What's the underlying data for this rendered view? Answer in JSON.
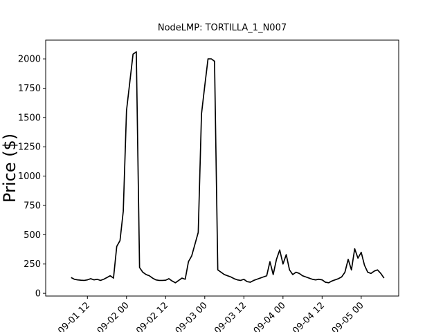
{
  "chart_data": {
    "type": "line",
    "title": "NodeLMP: TORTILLA_1_N007",
    "y_label": "Price ($)",
    "x": [
      "09-01 07:00",
      "09-01 08:00",
      "09-01 09:00",
      "09-01 10:00",
      "09-01 11:00",
      "09-01 12:00",
      "09-01 13:00",
      "09-01 14:00",
      "09-01 15:00",
      "09-01 16:00",
      "09-01 17:00",
      "09-01 18:00",
      "09-01 19:00",
      "09-01 20:00",
      "09-01 21:00",
      "09-01 22:00",
      "09-01 23:00",
      "09-02 00:00",
      "09-02 01:00",
      "09-02 02:00",
      "09-02 03:00",
      "09-02 04:00",
      "09-02 05:00",
      "09-02 06:00",
      "09-02 07:00",
      "09-02 08:00",
      "09-02 09:00",
      "09-02 10:00",
      "09-02 11:00",
      "09-02 12:00",
      "09-02 13:00",
      "09-02 14:00",
      "09-02 15:00",
      "09-02 16:00",
      "09-02 17:00",
      "09-02 18:00",
      "09-02 19:00",
      "09-02 20:00",
      "09-02 21:00",
      "09-02 22:00",
      "09-02 23:00",
      "09-03 00:00",
      "09-03 01:00",
      "09-03 02:00",
      "09-03 03:00",
      "09-03 04:00",
      "09-03 05:00",
      "09-03 06:00",
      "09-03 07:00",
      "09-03 08:00",
      "09-03 09:00",
      "09-03 10:00",
      "09-03 11:00",
      "09-03 12:00",
      "09-03 13:00",
      "09-03 14:00",
      "09-03 15:00",
      "09-03 16:00",
      "09-03 17:00",
      "09-03 18:00",
      "09-03 19:00",
      "09-03 20:00",
      "09-03 21:00",
      "09-03 22:00",
      "09-03 23:00",
      "09-04 00:00",
      "09-04 01:00",
      "09-04 02:00",
      "09-04 03:00",
      "09-04 04:00",
      "09-04 05:00",
      "09-04 06:00",
      "09-04 07:00",
      "09-04 08:00",
      "09-04 09:00",
      "09-04 10:00",
      "09-04 11:00",
      "09-04 12:00",
      "09-04 13:00",
      "09-04 14:00",
      "09-04 15:00",
      "09-04 16:00",
      "09-04 17:00",
      "09-04 18:00",
      "09-04 19:00",
      "09-04 20:00",
      "09-04 21:00",
      "09-04 22:00",
      "09-04 23:00",
      "09-05 00:00",
      "09-05 01:00",
      "09-05 02:00",
      "09-05 03:00",
      "09-05 04:00",
      "09-05 05:00",
      "09-05 06:00",
      "09-05 07:00"
    ],
    "series": [
      {
        "color": "#000000",
        "values": [
          135,
          120,
          115,
          112,
          110,
          115,
          125,
          115,
          120,
          110,
          120,
          135,
          150,
          130,
          400,
          450,
          700,
          1560,
          1800,
          2040,
          2060,
          220,
          180,
          160,
          150,
          130,
          115,
          110,
          110,
          112,
          125,
          105,
          90,
          110,
          130,
          120,
          270,
          320,
          420,
          520,
          1530,
          1770,
          2000,
          2000,
          1980,
          200,
          180,
          160,
          150,
          140,
          125,
          115,
          110,
          120,
          100,
          95,
          110,
          120,
          130,
          140,
          150,
          270,
          160,
          290,
          370,
          250,
          330,
          200,
          160,
          180,
          170,
          150,
          140,
          130,
          120,
          115,
          120,
          115,
          95,
          90,
          105,
          115,
          125,
          140,
          180,
          290,
          200,
          380,
          300,
          350,
          240,
          180,
          170,
          190,
          200,
          170,
          130
        ]
      }
    ],
    "xlim": [
      "08-31 23:12",
      "09-05 11:30"
    ],
    "xticks": [
      {
        "value": "09-01 12:00",
        "label": "09-01 12"
      },
      {
        "value": "09-02 00:00",
        "label": "09-02 00"
      },
      {
        "value": "09-02 12:00",
        "label": "09-02 12"
      },
      {
        "value": "09-03 00:00",
        "label": "09-03 00"
      },
      {
        "value": "09-03 12:00",
        "label": "09-03 12"
      },
      {
        "value": "09-04 00:00",
        "label": "09-04 00"
      },
      {
        "value": "09-04 12:00",
        "label": "09-04 12"
      },
      {
        "value": "09-05 00:00",
        "label": "09-05 00"
      }
    ],
    "ylim": [
      -23,
      2160
    ],
    "yticks": [
      0,
      250,
      500,
      750,
      1000,
      1250,
      1500,
      1750,
      2000
    ]
  }
}
